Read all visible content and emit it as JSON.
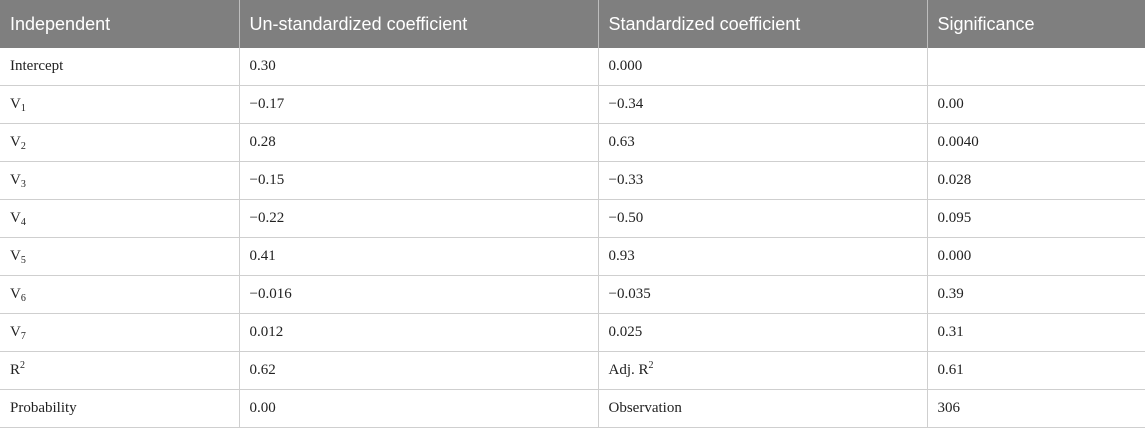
{
  "table": {
    "headers": [
      "Independent",
      "Un-standardized coefficient",
      "Standardized coefficient",
      "Significance"
    ],
    "rows": [
      {
        "label": "Intercept",
        "base": "Intercept",
        "sub": "",
        "sup": "",
        "unstd": "0.30",
        "std": "0.000",
        "sig": ""
      },
      {
        "label": "V1",
        "base": "V",
        "sub": "1",
        "sup": "",
        "unstd": "−0.17",
        "std": "−0.34",
        "sig": "0.00"
      },
      {
        "label": "V2",
        "base": "V",
        "sub": "2",
        "sup": "",
        "unstd": "0.28",
        "std": "0.63",
        "sig": "0.0040"
      },
      {
        "label": "V3",
        "base": "V",
        "sub": "3",
        "sup": "",
        "unstd": "−0.15",
        "std": "−0.33",
        "sig": "0.028"
      },
      {
        "label": "V4",
        "base": "V",
        "sub": "4",
        "sup": "",
        "unstd": "−0.22",
        "std": "−0.50",
        "sig": "0.095"
      },
      {
        "label": "V5",
        "base": "V",
        "sub": "5",
        "sup": "",
        "unstd": "0.41",
        "std": "0.93",
        "sig": "0.000"
      },
      {
        "label": "V6",
        "base": "V",
        "sub": "6",
        "sup": "",
        "unstd": "−0.016",
        "std": "−0.035",
        "sig": "0.39"
      },
      {
        "label": "V7",
        "base": "V",
        "sub": "7",
        "sup": "",
        "unstd": "0.012",
        "std": "0.025",
        "sig": "0.31"
      }
    ],
    "r2_row": {
      "label_base": "R",
      "label_sup": "2",
      "value": "0.62",
      "adj_label_base": "Adj. R",
      "adj_label_sup": "2",
      "adj_value": "0.61"
    },
    "prob_row": {
      "label": "Probability",
      "value": "0.00",
      "obs_label": "Observation",
      "obs_value": "306"
    }
  }
}
